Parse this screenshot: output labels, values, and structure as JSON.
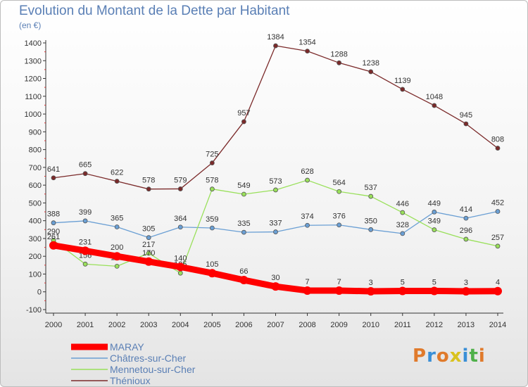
{
  "title": "Evolution du Montant de la Dette par Habitant",
  "unit": "(en €)",
  "logo": {
    "text": "Proxiti",
    "colors": [
      "#e07a2b",
      "#3a8fd6",
      "#e07a2b",
      "#d9c21e",
      "#3a8fd6",
      "#4fb04a",
      "#e07a2b"
    ]
  },
  "chart_data": {
    "type": "line",
    "title": "Evolution du Montant de la Dette par Habitant",
    "ylabel": "(en €)",
    "xlabel": "",
    "x": [
      "2000",
      "2001",
      "2002",
      "2003",
      "2004",
      "2005",
      "2006",
      "2007",
      "2008",
      "2009",
      "2010",
      "2011",
      "2012",
      "2013",
      "2014"
    ],
    "ylim": [
      -100,
      1400
    ],
    "yticks": [
      -100,
      0,
      100,
      200,
      300,
      400,
      500,
      600,
      700,
      800,
      900,
      1000,
      1100,
      1200,
      1300,
      1400
    ],
    "grid": false,
    "legend_position": "bottom-left",
    "series": [
      {
        "name": "MARAY",
        "color": "#ff0000",
        "values": [
          261,
          231,
          200,
          170,
          140,
          105,
          66,
          30,
          7,
          7,
          3,
          5,
          5,
          3,
          4
        ]
      },
      {
        "name": "Châtres-sur-Cher",
        "color": "#6a9fd4",
        "values": [
          388,
          399,
          365,
          305,
          364,
          359,
          335,
          337,
          374,
          376,
          350,
          328,
          449,
          414,
          452
        ]
      },
      {
        "name": "Mennetou-sur-Cher",
        "color": "#99e05a",
        "values": [
          290,
          156,
          144,
          217,
          105,
          578,
          549,
          573,
          628,
          564,
          537,
          446,
          349,
          296,
          257
        ]
      },
      {
        "name": "Thénioux",
        "color": "#7b2a2a",
        "values": [
          641,
          665,
          622,
          578,
          579,
          725,
          957,
          1384,
          1354,
          1288,
          1238,
          1139,
          1048,
          945,
          808
        ]
      }
    ]
  }
}
